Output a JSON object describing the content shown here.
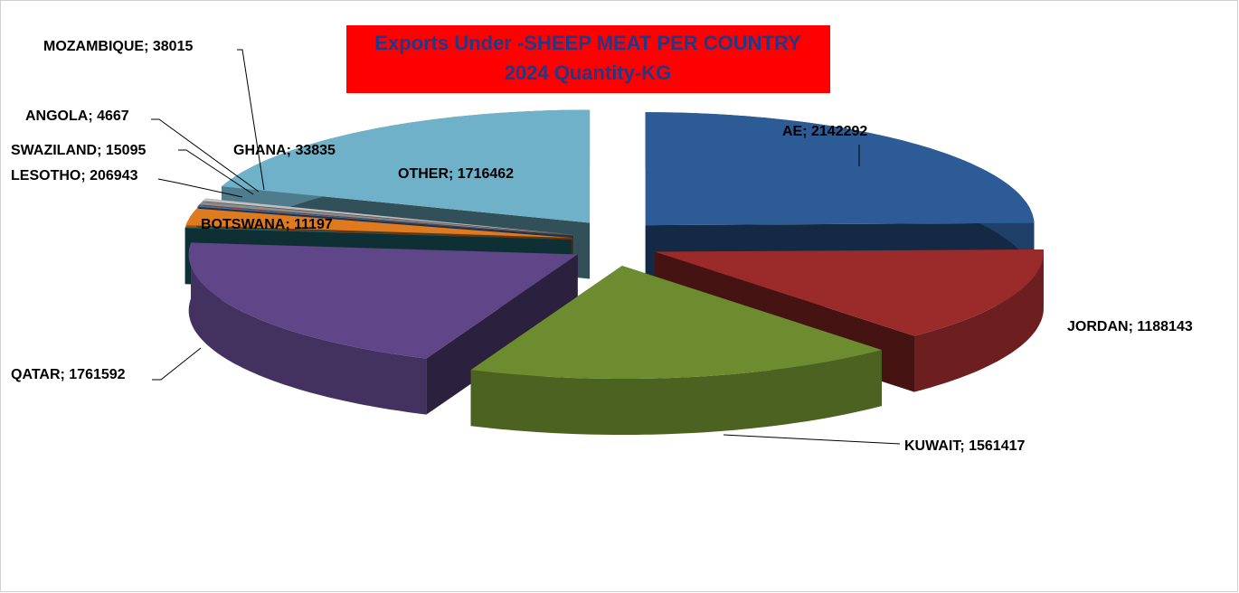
{
  "chart_data": {
    "type": "pie",
    "title": "Exports Under -SHEEP MEAT PER COUNTRY",
    "subtitle": "2024  Quantity-KG",
    "categories": [
      "AE",
      "JORDAN",
      "KUWAIT",
      "QATAR",
      "BOTSWANA",
      "LESOTHO",
      "SWAZILAND",
      "ANGOLA",
      "MOZAMBIQUE",
      "GHANA",
      "OTHER"
    ],
    "values": [
      2142292,
      1188143,
      1561417,
      1761592,
      11197,
      206943,
      15095,
      4667,
      38015,
      33835,
      1716462
    ],
    "value_labels": [
      "AE; 2142292",
      "JORDAN; 1188143",
      "KUWAIT; 1561417",
      "QATAR; 1761592",
      "BOTSWANA; 11197",
      "LESOTHO; 206943",
      "SWAZILAND; 15095",
      "ANGOLA; 4667",
      "MOZAMBIQUE; 38015",
      "GHANA; 33835",
      "OTHER; 1716462"
    ],
    "colors": [
      "#2d5b96",
      "#9b2b2b",
      "#6c8c2f",
      "#5f4688",
      "#1f6a74",
      "#e07a1f",
      "#4a70a2",
      "#b04040",
      "#8c8c8c",
      "#c0c0c0",
      "#6fb1c9"
    ]
  }
}
